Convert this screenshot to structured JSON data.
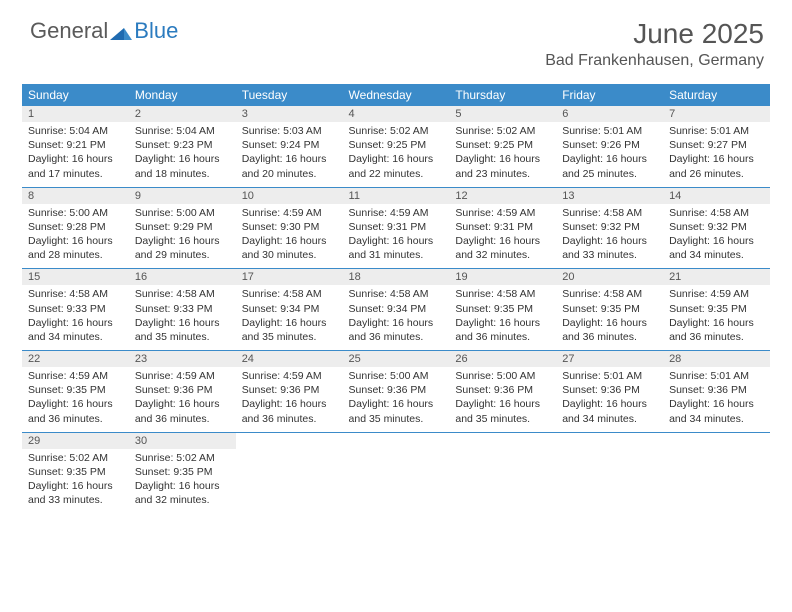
{
  "logo": {
    "general": "General",
    "blue": "Blue"
  },
  "title": "June 2025",
  "location": "Bad Frankenhausen, Germany",
  "colors": {
    "header_bg": "#3b8bc9",
    "header_text": "#ffffff",
    "daynum_bg": "#ededed",
    "text": "#333333",
    "logo_gray": "#5a5a5a",
    "logo_blue": "#2b7bbf",
    "rule": "#3b8bc9"
  },
  "day_headers": [
    "Sunday",
    "Monday",
    "Tuesday",
    "Wednesday",
    "Thursday",
    "Friday",
    "Saturday"
  ],
  "weeks": [
    [
      {
        "n": "1",
        "sr": "5:04 AM",
        "ss": "9:21 PM",
        "dl": "16 hours and 17 minutes."
      },
      {
        "n": "2",
        "sr": "5:04 AM",
        "ss": "9:23 PM",
        "dl": "16 hours and 18 minutes."
      },
      {
        "n": "3",
        "sr": "5:03 AM",
        "ss": "9:24 PM",
        "dl": "16 hours and 20 minutes."
      },
      {
        "n": "4",
        "sr": "5:02 AM",
        "ss": "9:25 PM",
        "dl": "16 hours and 22 minutes."
      },
      {
        "n": "5",
        "sr": "5:02 AM",
        "ss": "9:25 PM",
        "dl": "16 hours and 23 minutes."
      },
      {
        "n": "6",
        "sr": "5:01 AM",
        "ss": "9:26 PM",
        "dl": "16 hours and 25 minutes."
      },
      {
        "n": "7",
        "sr": "5:01 AM",
        "ss": "9:27 PM",
        "dl": "16 hours and 26 minutes."
      }
    ],
    [
      {
        "n": "8",
        "sr": "5:00 AM",
        "ss": "9:28 PM",
        "dl": "16 hours and 28 minutes."
      },
      {
        "n": "9",
        "sr": "5:00 AM",
        "ss": "9:29 PM",
        "dl": "16 hours and 29 minutes."
      },
      {
        "n": "10",
        "sr": "4:59 AM",
        "ss": "9:30 PM",
        "dl": "16 hours and 30 minutes."
      },
      {
        "n": "11",
        "sr": "4:59 AM",
        "ss": "9:31 PM",
        "dl": "16 hours and 31 minutes."
      },
      {
        "n": "12",
        "sr": "4:59 AM",
        "ss": "9:31 PM",
        "dl": "16 hours and 32 minutes."
      },
      {
        "n": "13",
        "sr": "4:58 AM",
        "ss": "9:32 PM",
        "dl": "16 hours and 33 minutes."
      },
      {
        "n": "14",
        "sr": "4:58 AM",
        "ss": "9:32 PM",
        "dl": "16 hours and 34 minutes."
      }
    ],
    [
      {
        "n": "15",
        "sr": "4:58 AM",
        "ss": "9:33 PM",
        "dl": "16 hours and 34 minutes."
      },
      {
        "n": "16",
        "sr": "4:58 AM",
        "ss": "9:33 PM",
        "dl": "16 hours and 35 minutes."
      },
      {
        "n": "17",
        "sr": "4:58 AM",
        "ss": "9:34 PM",
        "dl": "16 hours and 35 minutes."
      },
      {
        "n": "18",
        "sr": "4:58 AM",
        "ss": "9:34 PM",
        "dl": "16 hours and 36 minutes."
      },
      {
        "n": "19",
        "sr": "4:58 AM",
        "ss": "9:35 PM",
        "dl": "16 hours and 36 minutes."
      },
      {
        "n": "20",
        "sr": "4:58 AM",
        "ss": "9:35 PM",
        "dl": "16 hours and 36 minutes."
      },
      {
        "n": "21",
        "sr": "4:59 AM",
        "ss": "9:35 PM",
        "dl": "16 hours and 36 minutes."
      }
    ],
    [
      {
        "n": "22",
        "sr": "4:59 AM",
        "ss": "9:35 PM",
        "dl": "16 hours and 36 minutes."
      },
      {
        "n": "23",
        "sr": "4:59 AM",
        "ss": "9:36 PM",
        "dl": "16 hours and 36 minutes."
      },
      {
        "n": "24",
        "sr": "4:59 AM",
        "ss": "9:36 PM",
        "dl": "16 hours and 36 minutes."
      },
      {
        "n": "25",
        "sr": "5:00 AM",
        "ss": "9:36 PM",
        "dl": "16 hours and 35 minutes."
      },
      {
        "n": "26",
        "sr": "5:00 AM",
        "ss": "9:36 PM",
        "dl": "16 hours and 35 minutes."
      },
      {
        "n": "27",
        "sr": "5:01 AM",
        "ss": "9:36 PM",
        "dl": "16 hours and 34 minutes."
      },
      {
        "n": "28",
        "sr": "5:01 AM",
        "ss": "9:36 PM",
        "dl": "16 hours and 34 minutes."
      }
    ],
    [
      {
        "n": "29",
        "sr": "5:02 AM",
        "ss": "9:35 PM",
        "dl": "16 hours and 33 minutes."
      },
      {
        "n": "30",
        "sr": "5:02 AM",
        "ss": "9:35 PM",
        "dl": "16 hours and 32 minutes."
      },
      null,
      null,
      null,
      null,
      null
    ]
  ],
  "labels": {
    "sunrise": "Sunrise: ",
    "sunset": "Sunset: ",
    "daylight": "Daylight: "
  }
}
